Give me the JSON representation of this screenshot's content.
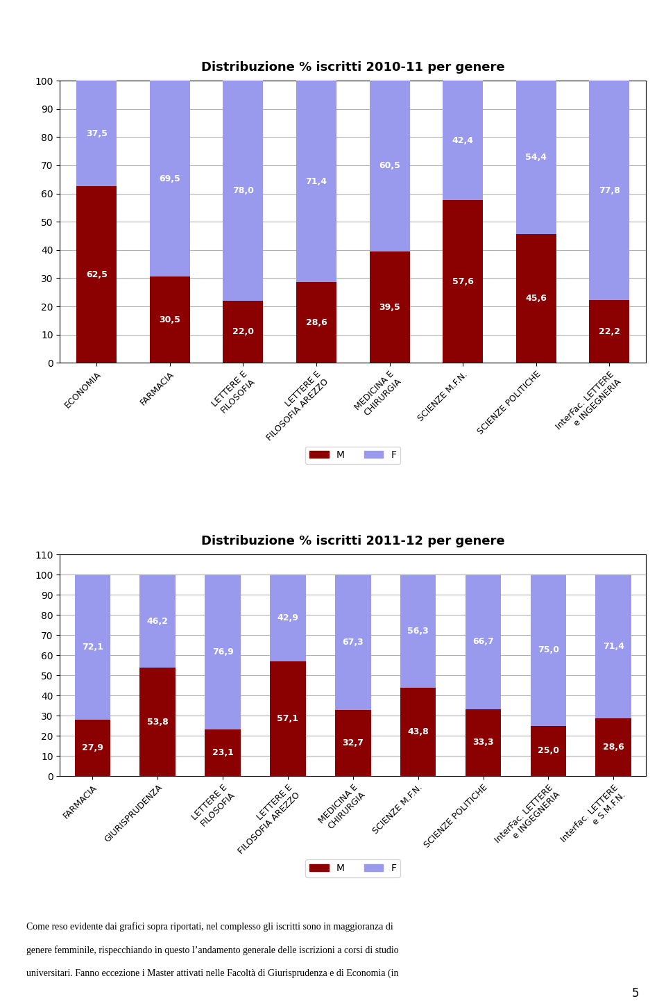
{
  "chart_data": [
    {
      "type": "bar",
      "stacked": true,
      "title": "Distribuzione % iscritti 2010-11 per genere",
      "categories": [
        "ECONOMIA",
        "FARMACIA",
        "LETTERE E FILOSOFIA",
        "LETTERE E FILOSOFIA AREZZO",
        "MEDICINA E CHIRURGIA",
        "SCIENZE M.F.N.",
        "SCIENZE POLITICHE",
        "InterFac. LETTERE e INGEGNERIA"
      ],
      "series": [
        {
          "name": "M",
          "color": "#8B0000",
          "values": [
            62.5,
            30.5,
            22.0,
            28.6,
            39.5,
            57.6,
            45.6,
            22.2
          ],
          "value_labels": [
            "62,5",
            "30,5",
            "22,0",
            "28,6",
            "39,5",
            "57,6",
            "45,6",
            "22,2"
          ]
        },
        {
          "name": "F",
          "color": "#9999EE",
          "values": [
            37.5,
            69.5,
            78.0,
            71.4,
            60.5,
            42.4,
            54.4,
            77.8
          ],
          "value_labels": [
            "37,5",
            "69,5",
            "78,0",
            "71,4",
            "60,5",
            "42,4",
            "54,4",
            "77,8"
          ]
        }
      ],
      "ylim": [
        0,
        100
      ],
      "yticks": [
        0,
        10,
        20,
        30,
        40,
        50,
        60,
        70,
        80,
        90,
        100
      ],
      "grid": true,
      "legend": "lower center",
      "data_labels": true
    },
    {
      "type": "bar",
      "stacked": true,
      "title": "Distribuzione % iscritti 2011-12 per genere",
      "categories": [
        "FARMACIA",
        "GIURISPRUDENZA",
        "LETTERE E FILOSOFIA",
        "LETTERE E FILOSOFIA AREZZO",
        "MEDICINA E CHIRURGIA",
        "SCIENZE M.F.N.",
        "SCIENZE POLITICHE",
        "InterFac. LETTERE e INGEGNERIA",
        "Interfac. LETTERE e S.M.F.N."
      ],
      "series": [
        {
          "name": "M",
          "color": "#8B0000",
          "values": [
            27.9,
            53.8,
            23.1,
            57.1,
            32.7,
            43.8,
            33.3,
            25.0,
            28.6
          ],
          "value_labels": [
            "27,9",
            "53,8",
            "23,1",
            "57,1",
            "32,7",
            "43,8",
            "33,3",
            "25,0",
            "28,6"
          ]
        },
        {
          "name": "F",
          "color": "#9999EE",
          "values": [
            72.1,
            46.2,
            76.9,
            42.9,
            67.3,
            56.3,
            66.7,
            75.0,
            71.4
          ],
          "value_labels": [
            "72,1",
            "46,2",
            "76,9",
            "42,9",
            "67,3",
            "56,3",
            "66,7",
            "75,0",
            "71,4"
          ]
        }
      ],
      "ylim": [
        0,
        110
      ],
      "yticks": [
        0,
        10,
        20,
        30,
        40,
        50,
        60,
        70,
        80,
        90,
        100,
        110
      ],
      "grid": true,
      "legend": "lower center",
      "data_labels": true
    }
  ],
  "annotations": [
    "Come reso evidente dai grafici sopra riportati, nel complesso gli iscritti sono in maggioranza di",
    "genere femminile, rispecchiando in questo l’andamento generale delle iscrizioni a corsi di studio",
    "universitari. Fanno eccezione i Master attivati nelle Facoltà di Giurisprudenza e di Economia (in",
    "5"
  ]
}
